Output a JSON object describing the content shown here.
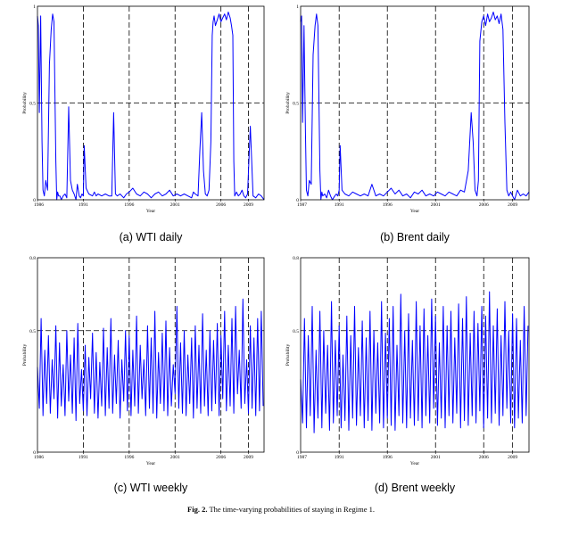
{
  "caption": {
    "label": "Fig. 2.",
    "text": "The time-varying probabilities of staying in Regime 1."
  },
  "chart_data": [
    {
      "type": "line",
      "subtitle": "(a) WTI daily",
      "xlabel": "Year",
      "ylabel": "Probability",
      "xlim": [
        1986.0,
        2010.7
      ],
      "ylim": [
        0,
        1
      ],
      "xticks": [
        1986,
        1991,
        1996,
        2001,
        2006,
        2009
      ],
      "yticks": [
        "0",
        "0.5",
        "1"
      ],
      "vlines": [
        1991,
        1996,
        2001,
        2006,
        2009
      ],
      "hline": 0.5,
      "color": "#0000ff",
      "x": [
        1986.0,
        1986.1,
        1986.2,
        1986.35,
        1986.5,
        1986.6,
        1986.75,
        1986.9,
        1987.1,
        1987.3,
        1987.5,
        1987.65,
        1987.8,
        1988.0,
        1988.1,
        1988.2,
        1988.3,
        1988.45,
        1988.6,
        1988.8,
        1989.0,
        1989.2,
        1989.4,
        1989.6,
        1989.8,
        1990.0,
        1990.2,
        1990.35,
        1990.55,
        1990.7,
        1990.85,
        1991.0,
        1991.1,
        1991.3,
        1991.6,
        1992.0,
        1992.2,
        1992.4,
        1992.6,
        1993.0,
        1993.4,
        1993.8,
        1994.1,
        1994.3,
        1994.5,
        1994.7,
        1995.0,
        1995.4,
        1995.7,
        1996.0,
        1996.4,
        1996.8,
        1997.2,
        1997.6,
        1998.0,
        1998.4,
        1998.8,
        1999.2,
        1999.6,
        2000.0,
        2000.4,
        2000.8,
        2001.2,
        2001.6,
        2002.0,
        2002.4,
        2002.8,
        2003.0,
        2003.2,
        2003.5,
        2003.7,
        2003.9,
        2004.1,
        2004.3,
        2004.5,
        2004.7,
        2004.9,
        2005.05,
        2005.15,
        2005.25,
        2005.4,
        2005.6,
        2005.8,
        2006.0,
        2006.2,
        2006.4,
        2006.6,
        2006.8,
        2007.0,
        2007.15,
        2007.3,
        2007.4,
        2007.5,
        2007.7,
        2007.9,
        2008.1,
        2008.3,
        2008.5,
        2008.7,
        2008.9,
        2009.2,
        2009.5,
        2009.8,
        2010.1,
        2010.4,
        2010.7
      ],
      "values": [
        0.95,
        0.9,
        0.45,
        0.95,
        0.3,
        0.05,
        0.02,
        0.1,
        0.05,
        0.7,
        0.88,
        0.96,
        0.92,
        0.2,
        0.0,
        0.04,
        0.02,
        0.02,
        0.0,
        0.02,
        0.03,
        0.01,
        0.48,
        0.1,
        0.05,
        0.03,
        0.0,
        0.08,
        0.02,
        0.01,
        0.03,
        0.02,
        0.28,
        0.06,
        0.03,
        0.02,
        0.04,
        0.02,
        0.03,
        0.02,
        0.03,
        0.02,
        0.02,
        0.45,
        0.03,
        0.02,
        0.03,
        0.01,
        0.03,
        0.04,
        0.06,
        0.03,
        0.02,
        0.04,
        0.03,
        0.01,
        0.03,
        0.04,
        0.02,
        0.03,
        0.05,
        0.02,
        0.03,
        0.02,
        0.03,
        0.02,
        0.01,
        0.04,
        0.03,
        0.02,
        0.25,
        0.45,
        0.15,
        0.03,
        0.02,
        0.05,
        0.3,
        0.85,
        0.92,
        0.95,
        0.9,
        0.93,
        0.96,
        0.92,
        0.94,
        0.96,
        0.93,
        0.97,
        0.94,
        0.9,
        0.85,
        0.2,
        0.02,
        0.04,
        0.02,
        0.03,
        0.05,
        0.02,
        0.01,
        0.03,
        0.38,
        0.02,
        0.01,
        0.03,
        0.02,
        0.0
      ]
    },
    {
      "type": "line",
      "subtitle": "(b) Brent daily",
      "xlabel": "Year",
      "ylabel": "Probability",
      "xlim": [
        1987.0,
        2010.7
      ],
      "ylim": [
        0,
        1
      ],
      "xticks": [
        1987,
        1991,
        1996,
        2001,
        2006,
        2009
      ],
      "yticks": [
        "0",
        "0.5",
        "1"
      ],
      "vlines": [
        1991,
        1996,
        2001,
        2006,
        2009
      ],
      "hline": 0.5,
      "color": "#0000ff",
      "x": [
        1987.0,
        1987.1,
        1987.2,
        1987.35,
        1987.5,
        1987.6,
        1987.75,
        1987.9,
        1988.1,
        1988.3,
        1988.5,
        1988.65,
        1988.8,
        1989.0,
        1989.1,
        1989.2,
        1989.3,
        1989.5,
        1989.7,
        1989.9,
        1990.1,
        1990.3,
        1990.55,
        1990.7,
        1990.85,
        1991.0,
        1991.1,
        1991.3,
        1991.6,
        1992.0,
        1992.4,
        1992.8,
        1993.2,
        1993.6,
        1994.0,
        1994.4,
        1994.8,
        1995.2,
        1995.6,
        1996.0,
        1996.4,
        1996.8,
        1997.2,
        1997.6,
        1998.0,
        1998.4,
        1998.8,
        1999.2,
        1999.6,
        2000.0,
        2000.4,
        2000.8,
        2001.2,
        2001.6,
        2002.0,
        2002.4,
        2002.8,
        2003.2,
        2003.6,
        2004.0,
        2004.4,
        2004.7,
        2004.9,
        2005.1,
        2005.3,
        2005.45,
        2005.6,
        2005.8,
        2006.0,
        2006.2,
        2006.4,
        2006.6,
        2006.8,
        2007.0,
        2007.2,
        2007.4,
        2007.6,
        2007.8,
        2008.0,
        2008.2,
        2008.4,
        2008.6,
        2008.8,
        2009.0,
        2009.2,
        2009.5,
        2009.8,
        2010.1,
        2010.4,
        2010.7
      ],
      "values": [
        0.92,
        0.95,
        0.4,
        0.9,
        0.35,
        0.05,
        0.02,
        0.1,
        0.08,
        0.75,
        0.9,
        0.96,
        0.9,
        0.15,
        0.0,
        0.04,
        0.02,
        0.03,
        0.01,
        0.05,
        0.02,
        0.0,
        0.02,
        0.03,
        0.02,
        0.05,
        0.28,
        0.05,
        0.03,
        0.02,
        0.04,
        0.03,
        0.02,
        0.03,
        0.02,
        0.08,
        0.02,
        0.03,
        0.02,
        0.04,
        0.06,
        0.03,
        0.05,
        0.02,
        0.03,
        0.01,
        0.04,
        0.03,
        0.05,
        0.02,
        0.03,
        0.02,
        0.04,
        0.03,
        0.02,
        0.04,
        0.03,
        0.02,
        0.05,
        0.04,
        0.15,
        0.45,
        0.3,
        0.05,
        0.02,
        0.1,
        0.82,
        0.92,
        0.95,
        0.9,
        0.96,
        0.92,
        0.94,
        0.97,
        0.93,
        0.95,
        0.91,
        0.96,
        0.88,
        0.4,
        0.05,
        0.02,
        0.04,
        0.02,
        0.0,
        0.05,
        0.02,
        0.03,
        0.02,
        0.04
      ]
    },
    {
      "type": "line",
      "subtitle": "(c) WTI weekly",
      "xlabel": "Year",
      "ylabel": "Probability",
      "xlim": [
        1986.0,
        2010.7
      ],
      "ylim": [
        0,
        0.8
      ],
      "xticks": [
        1986,
        1991,
        1996,
        2001,
        2006,
        2009
      ],
      "yticks": [
        "0",
        "0.5",
        "0.8"
      ],
      "vlines": [
        1991,
        1996,
        2001,
        2006,
        2009
      ],
      "hline": 0.5,
      "color": "#0000ff",
      "x": [
        1986.0,
        1986.2,
        1986.4,
        1986.6,
        1986.8,
        1987.0,
        1987.2,
        1987.4,
        1987.6,
        1987.8,
        1988.0,
        1988.2,
        1988.4,
        1988.6,
        1988.8,
        1989.0,
        1989.2,
        1989.4,
        1989.6,
        1989.8,
        1990.0,
        1990.2,
        1990.4,
        1990.6,
        1990.8,
        1991.0,
        1991.2,
        1991.4,
        1991.6,
        1991.8,
        1992.0,
        1992.2,
        1992.4,
        1992.6,
        1992.8,
        1993.0,
        1993.2,
        1993.4,
        1993.6,
        1993.8,
        1994.0,
        1994.2,
        1994.4,
        1994.6,
        1994.8,
        1995.0,
        1995.2,
        1995.4,
        1995.6,
        1995.8,
        1996.0,
        1996.2,
        1996.4,
        1996.6,
        1996.8,
        1997.0,
        1997.2,
        1997.4,
        1997.6,
        1997.8,
        1998.0,
        1998.2,
        1998.4,
        1998.6,
        1998.8,
        1999.0,
        1999.2,
        1999.4,
        1999.6,
        1999.8,
        2000.0,
        2000.2,
        2000.4,
        2000.6,
        2000.8,
        2001.0,
        2001.2,
        2001.4,
        2001.6,
        2001.8,
        2002.0,
        2002.2,
        2002.4,
        2002.6,
        2002.8,
        2003.0,
        2003.2,
        2003.4,
        2003.6,
        2003.8,
        2004.0,
        2004.2,
        2004.4,
        2004.6,
        2004.8,
        2005.0,
        2005.2,
        2005.4,
        2005.6,
        2005.8,
        2006.0,
        2006.2,
        2006.4,
        2006.6,
        2006.8,
        2007.0,
        2007.2,
        2007.4,
        2007.6,
        2007.8,
        2008.0,
        2008.2,
        2008.4,
        2008.6,
        2008.8,
        2009.0,
        2009.2,
        2009.4,
        2009.6,
        2009.8,
        2010.0,
        2010.2,
        2010.4,
        2010.6
      ],
      "values": [
        0.35,
        0.18,
        0.55,
        0.15,
        0.42,
        0.2,
        0.48,
        0.16,
        0.38,
        0.22,
        0.52,
        0.14,
        0.45,
        0.19,
        0.36,
        0.15,
        0.5,
        0.21,
        0.4,
        0.16,
        0.47,
        0.13,
        0.53,
        0.2,
        0.34,
        0.17,
        0.44,
        0.15,
        0.39,
        0.22,
        0.49,
        0.16,
        0.41,
        0.14,
        0.37,
        0.19,
        0.51,
        0.15,
        0.43,
        0.18,
        0.55,
        0.16,
        0.4,
        0.2,
        0.46,
        0.14,
        0.38,
        0.21,
        0.5,
        0.17,
        0.48,
        0.15,
        0.42,
        0.19,
        0.56,
        0.16,
        0.44,
        0.22,
        0.38,
        0.15,
        0.52,
        0.18,
        0.47,
        0.16,
        0.58,
        0.14,
        0.41,
        0.2,
        0.49,
        0.17,
        0.54,
        0.15,
        0.43,
        0.19,
        0.36,
        0.24,
        0.6,
        0.18,
        0.45,
        0.16,
        0.5,
        0.15,
        0.4,
        0.2,
        0.47,
        0.14,
        0.52,
        0.18,
        0.44,
        0.16,
        0.57,
        0.19,
        0.42,
        0.15,
        0.5,
        0.17,
        0.46,
        0.2,
        0.53,
        0.15,
        0.48,
        0.22,
        0.58,
        0.17,
        0.44,
        0.19,
        0.55,
        0.16,
        0.6,
        0.24,
        0.42,
        0.18,
        0.63,
        0.2,
        0.38,
        0.16,
        0.52,
        0.18,
        0.47,
        0.15,
        0.55,
        0.17,
        0.58,
        0.19
      ]
    },
    {
      "type": "line",
      "subtitle": "(d) Brent weekly",
      "xlabel": "Year",
      "ylabel": "Probability",
      "xlim": [
        1987.0,
        2010.7
      ],
      "ylim": [
        0,
        0.8
      ],
      "xticks": [
        1987,
        1991,
        1996,
        2001,
        2006,
        2009
      ],
      "yticks": [
        "0",
        "0.5",
        "0.8"
      ],
      "vlines": [
        1991,
        1996,
        2001,
        2006,
        2009
      ],
      "hline": 0.5,
      "color": "#0000ff",
      "x": [
        1987.0,
        1987.2,
        1987.4,
        1987.6,
        1987.8,
        1988.0,
        1988.2,
        1988.4,
        1988.6,
        1988.8,
        1989.0,
        1989.2,
        1989.4,
        1989.6,
        1989.8,
        1990.0,
        1990.2,
        1990.4,
        1990.6,
        1990.8,
        1991.0,
        1991.2,
        1991.4,
        1991.6,
        1991.8,
        1992.0,
        1992.2,
        1992.4,
        1992.6,
        1992.8,
        1993.0,
        1993.2,
        1993.4,
        1993.6,
        1993.8,
        1994.0,
        1994.2,
        1994.4,
        1994.6,
        1994.8,
        1995.0,
        1995.2,
        1995.4,
        1995.6,
        1995.8,
        1996.0,
        1996.2,
        1996.4,
        1996.6,
        1996.8,
        1997.0,
        1997.2,
        1997.4,
        1997.6,
        1997.8,
        1998.0,
        1998.2,
        1998.4,
        1998.6,
        1998.8,
        1999.0,
        1999.2,
        1999.4,
        1999.6,
        1999.8,
        2000.0,
        2000.2,
        2000.4,
        2000.6,
        2000.8,
        2001.0,
        2001.2,
        2001.4,
        2001.6,
        2001.8,
        2002.0,
        2002.2,
        2002.4,
        2002.6,
        2002.8,
        2003.0,
        2003.2,
        2003.4,
        2003.6,
        2003.8,
        2004.0,
        2004.2,
        2004.4,
        2004.6,
        2004.8,
        2005.0,
        2005.2,
        2005.4,
        2005.6,
        2005.8,
        2006.0,
        2006.2,
        2006.4,
        2006.6,
        2006.8,
        2007.0,
        2007.2,
        2007.4,
        2007.6,
        2007.8,
        2008.0,
        2008.2,
        2008.4,
        2008.6,
        2008.8,
        2009.0,
        2009.2,
        2009.4,
        2009.6,
        2009.8,
        2010.0,
        2010.2,
        2010.4,
        2010.6
      ],
      "values": [
        0.3,
        0.12,
        0.55,
        0.1,
        0.48,
        0.15,
        0.6,
        0.08,
        0.42,
        0.14,
        0.58,
        0.1,
        0.5,
        0.16,
        0.44,
        0.09,
        0.62,
        0.12,
        0.46,
        0.15,
        0.52,
        0.1,
        0.4,
        0.13,
        0.56,
        0.09,
        0.48,
        0.14,
        0.6,
        0.11,
        0.43,
        0.15,
        0.54,
        0.1,
        0.47,
        0.13,
        0.58,
        0.09,
        0.5,
        0.16,
        0.45,
        0.12,
        0.62,
        0.1,
        0.49,
        0.14,
        0.55,
        0.11,
        0.6,
        0.09,
        0.44,
        0.15,
        0.65,
        0.12,
        0.5,
        0.1,
        0.57,
        0.14,
        0.46,
        0.11,
        0.62,
        0.13,
        0.52,
        0.1,
        0.59,
        0.15,
        0.48,
        0.12,
        0.63,
        0.18,
        0.56,
        0.11,
        0.45,
        0.14,
        0.6,
        0.1,
        0.52,
        0.15,
        0.58,
        0.12,
        0.47,
        0.16,
        0.61,
        0.1,
        0.55,
        0.13,
        0.64,
        0.11,
        0.49,
        0.15,
        0.58,
        0.12,
        0.53,
        0.17,
        0.6,
        0.1,
        0.56,
        0.14,
        0.66,
        0.12,
        0.52,
        0.16,
        0.59,
        0.11,
        0.48,
        0.15,
        0.62,
        0.18,
        0.5,
        0.12,
        0.57,
        0.1,
        0.55,
        0.14,
        0.46,
        0.12,
        0.6,
        0.15,
        0.52
      ]
    }
  ]
}
